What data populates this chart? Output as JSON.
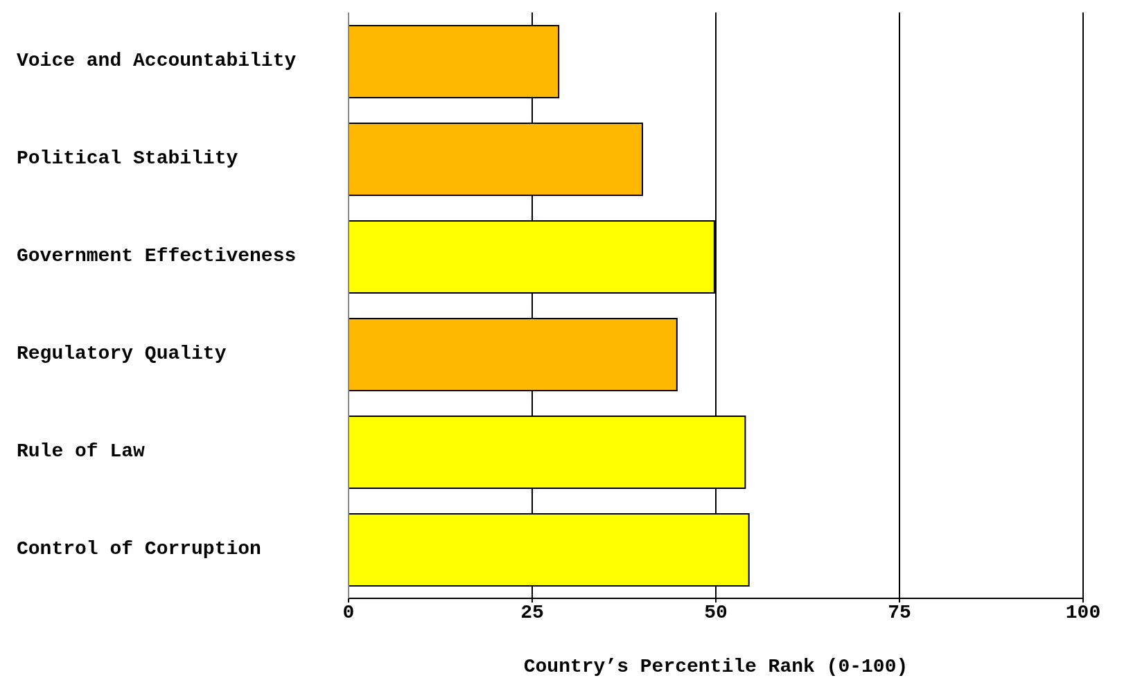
{
  "chart_data": {
    "type": "bar",
    "orientation": "horizontal",
    "xlabel": "Country’s Percentile Rank (0-100)",
    "categories": [
      "Voice and Accountability",
      "Political Stability",
      "Government Effectiveness",
      "Regulatory Quality",
      "Rule of Law",
      "Control of Corruption"
    ],
    "values": [
      28.6,
      40.0,
      49.8,
      44.7,
      54.0,
      54.5
    ],
    "colors": [
      "#ffb900",
      "#ffb900",
      "#ffff00",
      "#ffb900",
      "#ffff00",
      "#ffff00"
    ],
    "xlim": [
      0,
      100
    ],
    "xticks": [
      0,
      25,
      50,
      75,
      100
    ],
    "grid": "x"
  }
}
